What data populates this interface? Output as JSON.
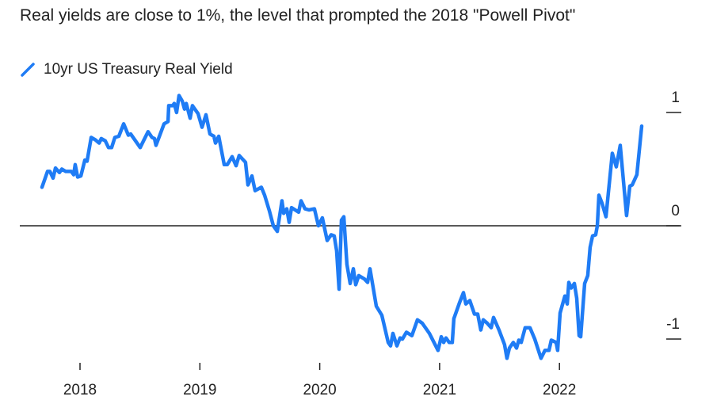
{
  "chart_data": {
    "type": "line",
    "title": "Real yields are close to 1%, the level that prompted the 2018 \"Powell Pivot\"",
    "xlabel": "",
    "ylabel": "",
    "xlim": [
      2017.65,
      2022.75
    ],
    "ylim": [
      -1.25,
      1.2
    ],
    "x_ticks": [
      2018,
      2019,
      2020,
      2021,
      2022
    ],
    "x_tick_labels": [
      "2018",
      "2019",
      "2020",
      "2021",
      "2022"
    ],
    "y_ticks": [
      1,
      0,
      -1
    ],
    "y_tick_labels": [
      "1",
      "0",
      "-1"
    ],
    "y_axis_side": "right",
    "grid": false,
    "zero_line": true,
    "legend_position": "top-left",
    "series": [
      {
        "name": "10yr US Treasury Real Yield",
        "color": "#1f7cf5",
        "points": [
          [
            2017.683,
            0.34
          ],
          [
            2017.729,
            0.48
          ],
          [
            2017.749,
            0.48
          ],
          [
            2017.775,
            0.42
          ],
          [
            2017.795,
            0.51
          ],
          [
            2017.828,
            0.47
          ],
          [
            2017.848,
            0.5
          ],
          [
            2017.881,
            0.48
          ],
          [
            2017.927,
            0.48
          ],
          [
            2017.947,
            0.45
          ],
          [
            2017.96,
            0.54
          ],
          [
            2017.98,
            0.43
          ],
          [
            2018.007,
            0.44
          ],
          [
            2018.04,
            0.58
          ],
          [
            2018.059,
            0.57
          ],
          [
            2018.093,
            0.78
          ],
          [
            2018.126,
            0.76
          ],
          [
            2018.159,
            0.73
          ],
          [
            2018.178,
            0.77
          ],
          [
            2018.211,
            0.75
          ],
          [
            2018.238,
            0.69
          ],
          [
            2018.264,
            0.69
          ],
          [
            2018.291,
            0.78
          ],
          [
            2018.324,
            0.79
          ],
          [
            2018.364,
            0.9
          ],
          [
            2018.403,
            0.8
          ],
          [
            2018.423,
            0.81
          ],
          [
            2018.502,
            0.69
          ],
          [
            2018.535,
            0.76
          ],
          [
            2018.568,
            0.83
          ],
          [
            2018.601,
            0.78
          ],
          [
            2018.621,
            0.77
          ],
          [
            2018.634,
            0.71
          ],
          [
            2018.701,
            0.9
          ],
          [
            2018.734,
            0.92
          ],
          [
            2018.74,
            1.06
          ],
          [
            2018.773,
            1.06
          ],
          [
            2018.786,
            1.08
          ],
          [
            2018.806,
            1.0
          ],
          [
            2018.826,
            1.15
          ],
          [
            2018.853,
            1.1
          ],
          [
            2018.872,
            1.03
          ],
          [
            2018.886,
            1.08
          ],
          [
            2018.919,
            0.95
          ],
          [
            2018.938,
            1.06
          ],
          [
            2018.985,
            0.99
          ],
          [
            2019.018,
            0.87
          ],
          [
            2019.051,
            0.98
          ],
          [
            2019.084,
            0.81
          ],
          [
            2019.117,
            0.79
          ],
          [
            2019.13,
            0.73
          ],
          [
            2019.157,
            0.79
          ],
          [
            2019.203,
            0.54
          ],
          [
            2019.229,
            0.54
          ],
          [
            2019.269,
            0.61
          ],
          [
            2019.302,
            0.53
          ],
          [
            2019.328,
            0.62
          ],
          [
            2019.381,
            0.56
          ],
          [
            2019.401,
            0.36
          ],
          [
            2019.434,
            0.44
          ],
          [
            2019.461,
            0.31
          ],
          [
            2019.513,
            0.34
          ],
          [
            2019.54,
            0.27
          ],
          [
            2019.58,
            0.13
          ],
          [
            2019.613,
            0.0
          ],
          [
            2019.646,
            -0.05
          ],
          [
            2019.685,
            0.22
          ],
          [
            2019.699,
            0.11
          ],
          [
            2019.725,
            0.15
          ],
          [
            2019.745,
            0.03
          ],
          [
            2019.765,
            0.16
          ],
          [
            2019.824,
            0.12
          ],
          [
            2019.844,
            0.22
          ],
          [
            2019.877,
            0.15
          ],
          [
            2019.91,
            0.14
          ],
          [
            2019.956,
            0.15
          ],
          [
            2019.989,
            0.0
          ],
          [
            2020.022,
            0.07
          ],
          [
            2020.062,
            -0.13
          ],
          [
            2020.095,
            -0.08
          ],
          [
            2020.121,
            -0.09
          ],
          [
            2020.141,
            -0.22
          ],
          [
            2020.161,
            -0.56
          ],
          [
            2020.181,
            0.05
          ],
          [
            2020.201,
            0.08
          ],
          [
            2020.227,
            -0.34
          ],
          [
            2020.254,
            -0.51
          ],
          [
            2020.28,
            -0.38
          ],
          [
            2020.3,
            -0.52
          ],
          [
            2020.326,
            -0.44
          ],
          [
            2020.373,
            -0.47
          ],
          [
            2020.399,
            -0.5
          ],
          [
            2020.419,
            -0.38
          ],
          [
            2020.472,
            -0.71
          ],
          [
            2020.518,
            -0.79
          ],
          [
            2020.571,
            -1.03
          ],
          [
            2020.591,
            -1.06
          ],
          [
            2020.611,
            -0.95
          ],
          [
            2020.644,
            -1.06
          ],
          [
            2020.67,
            -0.99
          ],
          [
            2020.69,
            -1.0
          ],
          [
            2020.723,
            -0.94
          ],
          [
            2020.769,
            -0.97
          ],
          [
            2020.815,
            -0.83
          ],
          [
            2020.855,
            -0.86
          ],
          [
            2020.915,
            -0.95
          ],
          [
            2020.987,
            -1.1
          ],
          [
            2021.014,
            -0.98
          ],
          [
            2021.034,
            -1.03
          ],
          [
            2021.053,
            -0.99
          ],
          [
            2021.08,
            -1.03
          ],
          [
            2021.106,
            -1.03
          ],
          [
            2021.119,
            -0.82
          ],
          [
            2021.166,
            -0.68
          ],
          [
            2021.199,
            -0.59
          ],
          [
            2021.219,
            -0.69
          ],
          [
            2021.252,
            -0.66
          ],
          [
            2021.291,
            -0.78
          ],
          [
            2021.318,
            -0.78
          ],
          [
            2021.344,
            -0.92
          ],
          [
            2021.364,
            -0.83
          ],
          [
            2021.397,
            -0.86
          ],
          [
            2021.43,
            -0.9
          ],
          [
            2021.45,
            -0.81
          ],
          [
            2021.496,
            -0.92
          ],
          [
            2021.542,
            -1.05
          ],
          [
            2021.562,
            -1.17
          ],
          [
            2021.582,
            -1.08
          ],
          [
            2021.615,
            -1.03
          ],
          [
            2021.642,
            -1.08
          ],
          [
            2021.661,
            -1.01
          ],
          [
            2021.681,
            -1.03
          ],
          [
            2021.714,
            -0.9
          ],
          [
            2021.754,
            -0.9
          ],
          [
            2021.794,
            -1.0
          ],
          [
            2021.846,
            -1.17
          ],
          [
            2021.879,
            -1.1
          ],
          [
            2021.913,
            -1.1
          ],
          [
            2021.932,
            -1.01
          ],
          [
            2021.972,
            -1.03
          ],
          [
            2021.985,
            -1.1
          ],
          [
            2022.005,
            -0.77
          ],
          [
            2022.045,
            -0.62
          ],
          [
            2022.065,
            -0.69
          ],
          [
            2022.078,
            -0.5
          ],
          [
            2022.098,
            -0.55
          ],
          [
            2022.124,
            -0.51
          ],
          [
            2022.144,
            -0.64
          ],
          [
            2022.164,
            -0.97
          ],
          [
            2022.177,
            -0.98
          ],
          [
            2022.21,
            -0.51
          ],
          [
            2022.236,
            -0.44
          ],
          [
            2022.256,
            -0.19
          ],
          [
            2022.276,
            -0.09
          ],
          [
            2022.302,
            -0.08
          ],
          [
            2022.316,
            0.0
          ],
          [
            2022.329,
            0.27
          ],
          [
            2022.355,
            0.2
          ],
          [
            2022.388,
            0.08
          ],
          [
            2022.441,
            0.64
          ],
          [
            2022.474,
            0.52
          ],
          [
            2022.507,
            0.71
          ],
          [
            2022.56,
            0.09
          ],
          [
            2022.587,
            0.35
          ],
          [
            2022.607,
            0.36
          ],
          [
            2022.646,
            0.45
          ],
          [
            2022.686,
            0.88
          ]
        ]
      }
    ]
  }
}
